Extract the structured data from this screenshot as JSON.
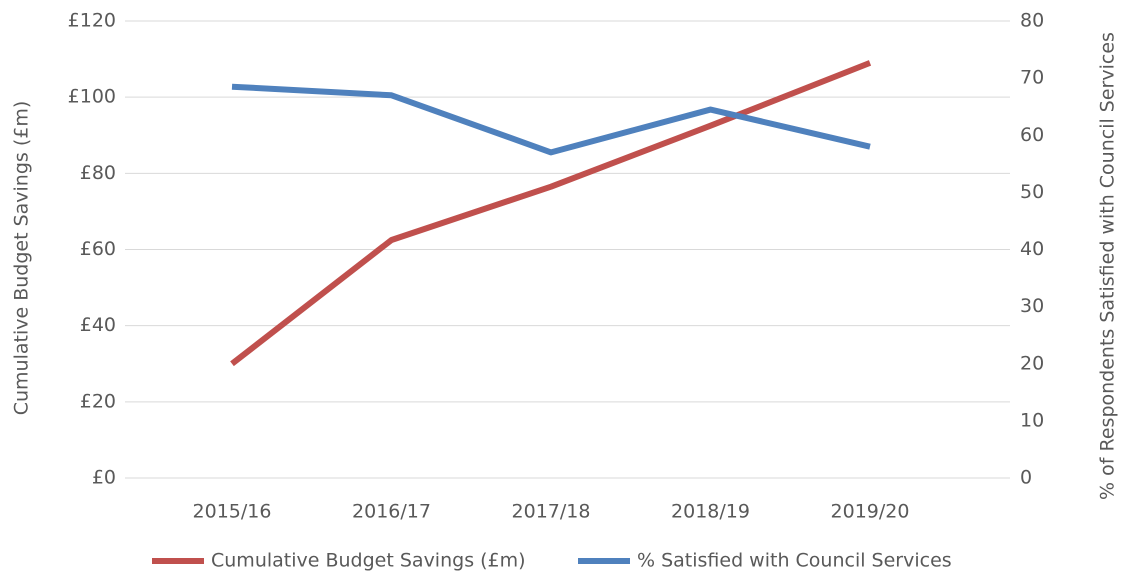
{
  "chart_data": {
    "type": "line",
    "categories": [
      "2015/16",
      "2016/17",
      "2017/18",
      "2018/19",
      "2019/20"
    ],
    "series": [
      {
        "name": "Cumulative Budget Savings (£m)",
        "color": "#c0504d",
        "values": [
          30,
          62.5,
          76.5,
          92.5,
          109
        ]
      },
      {
        "name": "% Satisfied with Council Services",
        "color": "#4f81bd",
        "axis": "y2",
        "values": [
          68.5,
          67,
          57,
          64.5,
          58
        ]
      }
    ],
    "y_label": "Cumulative Budget Savings (£m)",
    "y2_label": "% of Respondents Satisfied with Council Services",
    "ylim": [
      0,
      120
    ],
    "yticks": [
      {
        "value": 0,
        "label": "£0"
      },
      {
        "value": 20,
        "label": "£20"
      },
      {
        "value": 40,
        "label": "£40"
      },
      {
        "value": 60,
        "label": "£60"
      },
      {
        "value": 80,
        "label": "£80"
      },
      {
        "value": 100,
        "label": "£100"
      },
      {
        "value": 120,
        "label": "£120"
      }
    ],
    "y2lim": [
      0,
      80
    ],
    "y2ticks": [
      0,
      10,
      20,
      30,
      40,
      50,
      60,
      70,
      80
    ],
    "grid": true,
    "legend": "bottom"
  }
}
